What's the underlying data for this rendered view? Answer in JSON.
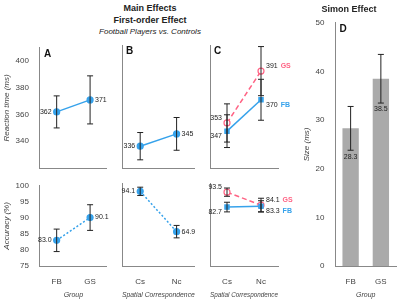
{
  "title": [
    "Main Effects",
    "First-order Effect"
  ],
  "subtitle": "Football Players vs. Controls",
  "chart_data": [
    {
      "type": "line",
      "annotations": [
        "A"
      ],
      "categories": [
        "FB",
        "GS"
      ],
      "values": [
        362,
        371
      ],
      "errors": [
        12,
        18
      ],
      "ylabel": "Reaction time (ms)",
      "ylim": [
        320,
        410
      ],
      "yticks": [
        340,
        360,
        380,
        400
      ],
      "grid": false,
      "data_labels": true,
      "tick_labels": "y"
    },
    {
      "type": "line",
      "categories": [
        "FB",
        "GS"
      ],
      "values": [
        83.0,
        90.1
      ],
      "value_labels": [
        "83.0",
        "90.1"
      ],
      "errors": [
        3.5,
        4.0
      ],
      "xlabel": "Group",
      "ylabel": "Accuracy (%)",
      "ylim": [
        75,
        100
      ],
      "yticks": [
        75,
        80,
        85,
        90,
        95,
        100
      ],
      "grid": false,
      "data_labels": true,
      "line_style": "dotted"
    },
    {
      "type": "line",
      "annotations": [
        "B"
      ],
      "categories": [
        "Cs",
        "Nc"
      ],
      "values": [
        336,
        345
      ],
      "errors": [
        10,
        12
      ],
      "ylim": [
        320,
        410
      ],
      "yticks": [
        340,
        360,
        380,
        400
      ],
      "grid": false,
      "data_labels": true,
      "tick_labels": false
    },
    {
      "type": "line",
      "categories": [
        "Cs",
        "Nc"
      ],
      "values": [
        94.1,
        64.9
      ],
      "errors": [
        3.0,
        4.5
      ],
      "xlabel": "Spatial Correspondence",
      "ylim": [
        40,
        100
      ],
      "yticks": [
        40,
        50,
        60,
        70,
        80,
        90,
        100
      ],
      "grid": false,
      "data_labels": true,
      "tick_labels": "x",
      "line_style": "dotted"
    },
    {
      "type": "line",
      "annotations": [
        "C"
      ],
      "categories": [
        "Cs",
        "Nc"
      ],
      "series": [
        {
          "name": "FB",
          "values": [
            347,
            370
          ],
          "errors": [
            12,
            15
          ],
          "marker": "square",
          "line_style": "solid"
        },
        {
          "name": "GS",
          "values": [
            353,
            391
          ],
          "errors": [
            14,
            18
          ],
          "marker": "circle",
          "line_style": "dashed"
        }
      ],
      "ylim": [
        320,
        410
      ],
      "yticks": [
        340,
        360,
        380,
        400
      ],
      "grid": false,
      "data_labels": true,
      "tick_labels": false
    },
    {
      "type": "line",
      "categories": [
        "Cs",
        "Nc"
      ],
      "series": [
        {
          "name": "FB",
          "values": [
            82.7,
            83.3
          ],
          "errors": [
            3.5,
            4.0
          ],
          "marker": "square",
          "line_style": "solid"
        },
        {
          "name": "GS",
          "values": [
            93.5,
            84.1
          ],
          "errors": [
            3.0,
            5.0
          ],
          "marker": "circle",
          "line_style": "dashed"
        }
      ],
      "xlabel": "Spatial Correspondence",
      "ylim": [
        40,
        100
      ],
      "yticks": [
        40,
        50,
        60,
        70,
        80,
        90,
        100
      ],
      "grid": false,
      "data_labels": true,
      "tick_labels": "x"
    },
    {
      "type": "bar",
      "title": "Simon Effect",
      "annotations": [
        "D"
      ],
      "categories": [
        "FB",
        "GS"
      ],
      "values": [
        28.3,
        38.5
      ],
      "errors": [
        4.5,
        5.0
      ],
      "color": "#aaaaaa",
      "xlabel": "Group",
      "ylabel": "Size (ms)",
      "ylim": [
        0,
        50
      ],
      "yticks": [
        0,
        10,
        20,
        30,
        40,
        50
      ],
      "grid": false,
      "data_labels": true
    }
  ]
}
